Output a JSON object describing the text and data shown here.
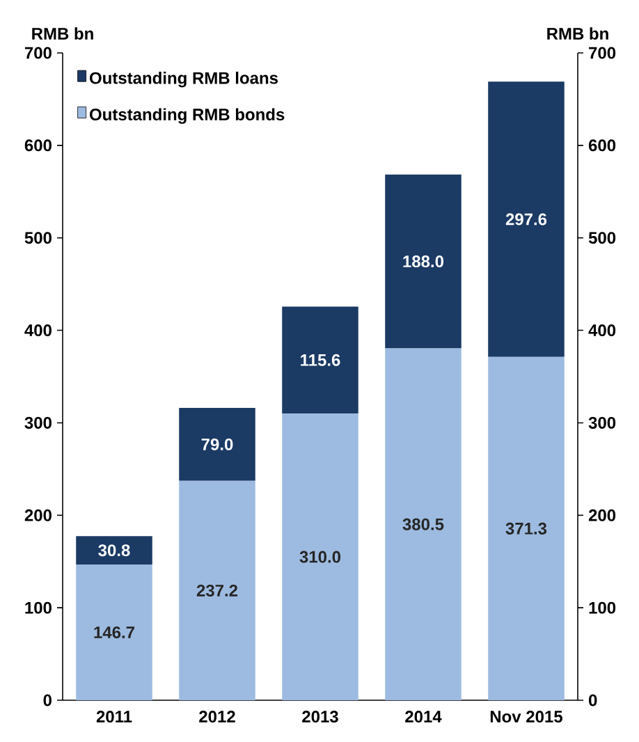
{
  "chart_data": {
    "type": "bar",
    "stacked": true,
    "categories": [
      "2011",
      "2012",
      "2013",
      "2014",
      "Nov 2015"
    ],
    "series": [
      {
        "name": "Outstanding RMB bonds",
        "color": "#9dbbe0",
        "values": [
          146.7,
          237.2,
          310.0,
          380.5,
          371.3
        ],
        "value_labels": [
          "146.7",
          "237.2",
          "310.0",
          "380.5",
          "371.3"
        ]
      },
      {
        "name": "Outstanding RMB loans",
        "color": "#1b3a64",
        "values": [
          30.8,
          79.0,
          115.6,
          188.0,
          297.6
        ],
        "value_labels": [
          "30.8",
          "79.0",
          "115.6",
          "188.0",
          "297.6"
        ]
      }
    ],
    "ylabel": "RMB bn",
    "y2label": "RMB bn",
    "ylim": [
      0,
      700
    ],
    "yticks": [
      0,
      100,
      200,
      300,
      400,
      500,
      600,
      700
    ],
    "y2lim": [
      0,
      700
    ],
    "y2ticks": [
      0,
      100,
      200,
      300,
      400,
      500,
      600,
      700
    ],
    "legend": "top left",
    "grid": false
  }
}
